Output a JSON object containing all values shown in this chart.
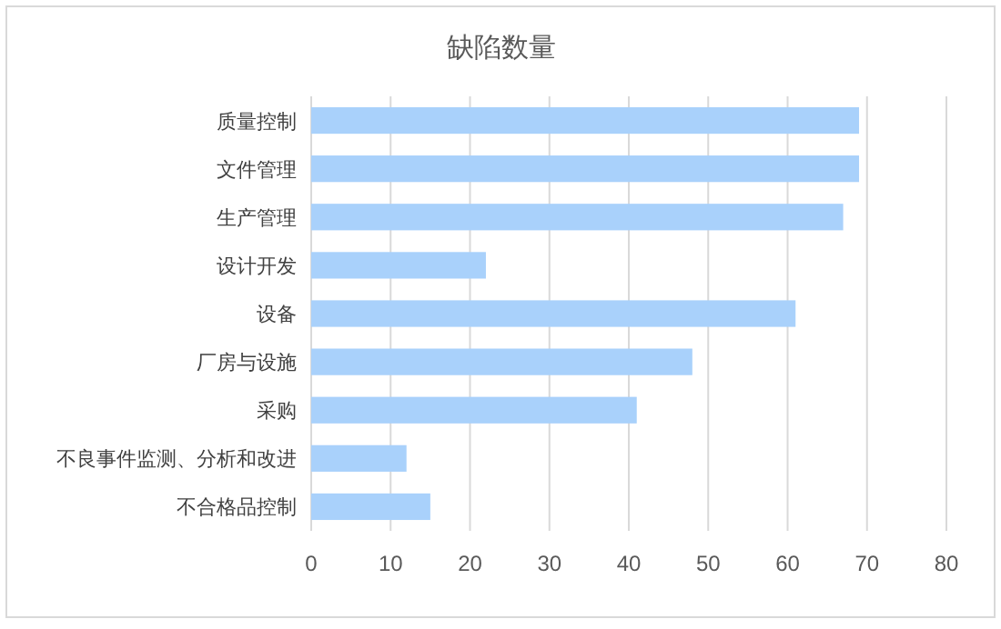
{
  "chart_data": {
    "type": "bar",
    "orientation": "horizontal",
    "title": "缺陷数量",
    "categories": [
      "质量控制",
      "文件管理",
      "生产管理",
      "设计开发",
      "设备",
      "厂房与设施",
      "采购",
      "不良事件监测、分析和改进",
      "不合格品控制"
    ],
    "values": [
      69,
      69,
      67,
      22,
      61,
      48,
      41,
      12,
      15
    ],
    "color": "#a9d1fb",
    "xlim": [
      0,
      80
    ],
    "xticks": [
      0,
      10,
      20,
      30,
      40,
      50,
      60,
      70,
      80
    ],
    "grid": "x"
  }
}
